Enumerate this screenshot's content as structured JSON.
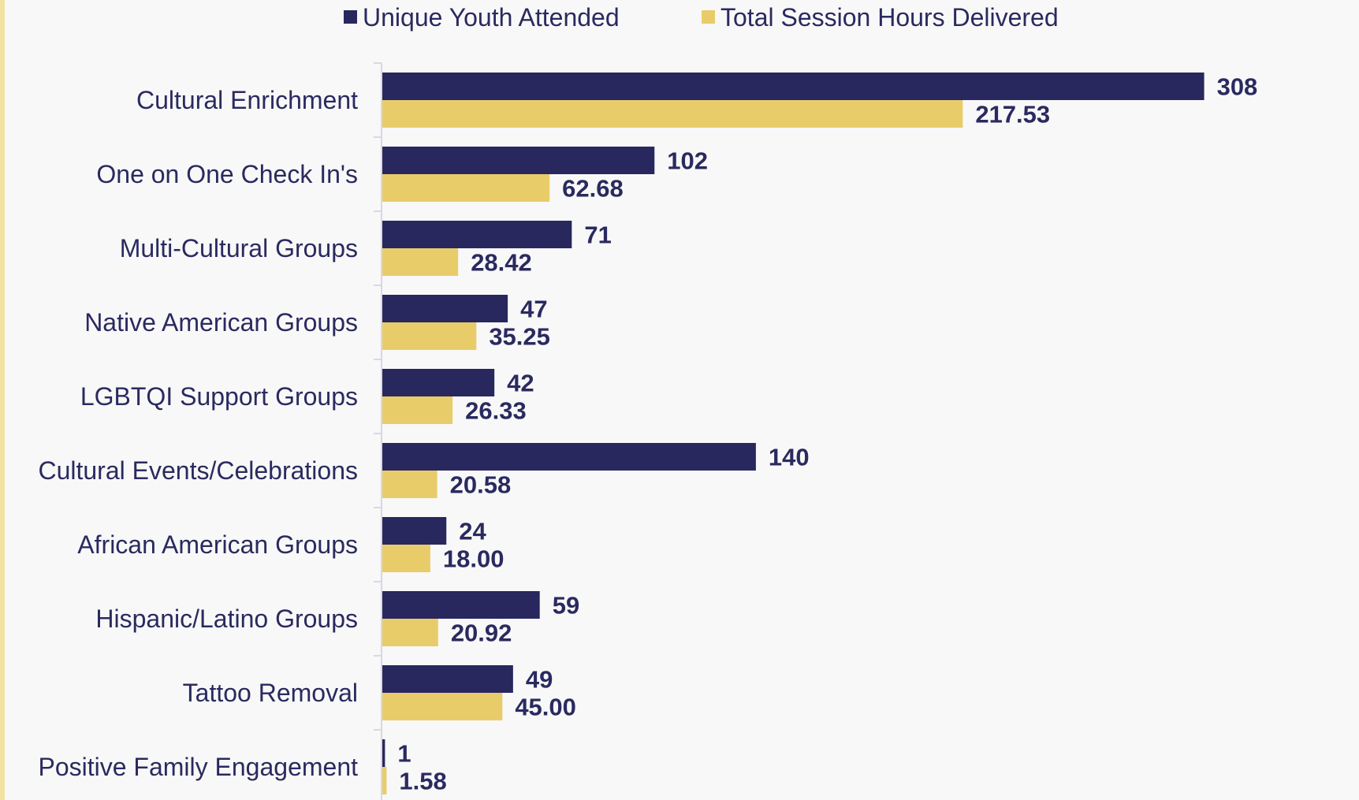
{
  "chart_data": {
    "type": "bar",
    "orientation": "horizontal",
    "categories": [
      "Cultural Enrichment",
      "One on One Check In's",
      "Multi-Cultural Groups",
      "Native American Groups",
      "LGBTQI Support Groups",
      "Cultural Events/Celebrations",
      "African American Groups",
      "Hispanic/Latino Groups",
      "Tattoo Removal",
      "Positive Family Engagement"
    ],
    "series": [
      {
        "name": "Unique Youth Attended",
        "color": "#28285e",
        "values": [
          308,
          102,
          71,
          47,
          42,
          140,
          24,
          59,
          49,
          1
        ],
        "labels": [
          "308",
          "102",
          "71",
          "47",
          "42",
          "140",
          "24",
          "59",
          "49",
          "1"
        ]
      },
      {
        "name": "Total Session Hours Delivered",
        "color": "#e9cc6a",
        "values": [
          217.53,
          62.68,
          28.42,
          35.25,
          26.33,
          20.58,
          18.0,
          20.92,
          45.0,
          1.58
        ],
        "labels": [
          "217.53",
          "62.68",
          "28.42",
          "35.25",
          "26.33",
          "20.58",
          "18.00",
          "20.92",
          "45.00",
          "1.58"
        ]
      }
    ],
    "xlim": [
      0,
      340
    ],
    "legend_position": "top",
    "grid": false
  }
}
